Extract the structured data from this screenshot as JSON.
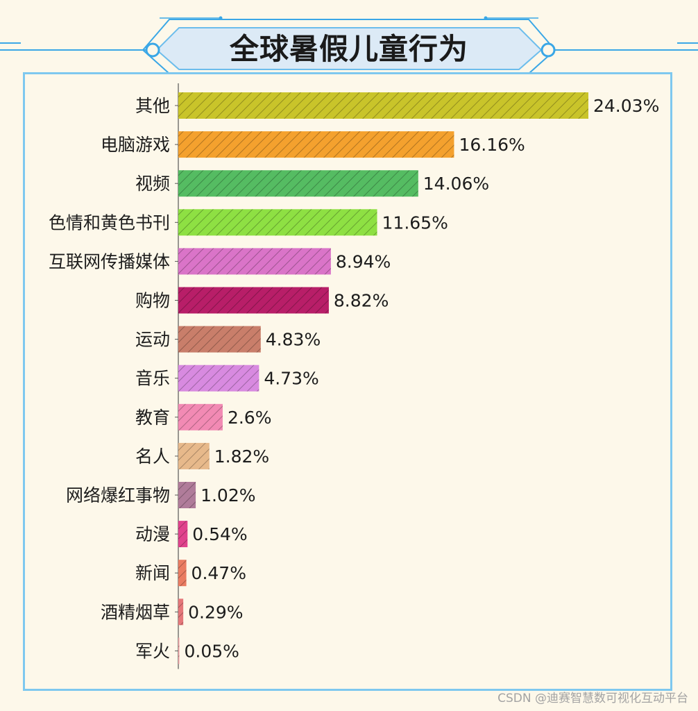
{
  "title": "全球暑假儿童行为",
  "watermark": "CSDN @迪赛智慧数可视化互动平台",
  "colors": {
    "background": "#fdf8ea",
    "frame": "#7ec8ef",
    "title_plate": "#dceaf6",
    "accent": "#3aa7e6"
  },
  "chart_data": {
    "type": "bar",
    "orientation": "horizontal",
    "title": "全球暑假儿童行为",
    "xlabel": "",
    "ylabel": "",
    "value_format": "percent",
    "pattern": "diagonal-hatch",
    "grid": false,
    "legend": "none",
    "xlim": [
      0,
      24.03
    ],
    "categories": [
      "其他",
      "电脑游戏",
      "视频",
      "色情和黄色书刊",
      "互联网传播媒体",
      "购物",
      "运动",
      "音乐",
      "教育",
      "名人",
      "网络爆红事物",
      "动漫",
      "新闻",
      "酒精烟草",
      "军火"
    ],
    "values": [
      24.03,
      16.16,
      14.06,
      11.65,
      8.94,
      8.82,
      4.83,
      4.73,
      2.6,
      1.82,
      1.02,
      0.54,
      0.47,
      0.29,
      0.05
    ],
    "labels": [
      "24.03%",
      "16.16%",
      "14.06%",
      "11.65%",
      "8.94%",
      "8.82%",
      "4.83%",
      "4.73%",
      "2.6%",
      "1.82%",
      "1.02%",
      "0.54%",
      "0.47%",
      "0.29%",
      "0.05%"
    ],
    "bar_colors": [
      "#c9c42a",
      "#f4a12e",
      "#55bc62",
      "#8ee043",
      "#da74c8",
      "#b81e68",
      "#c97e6a",
      "#d88ae0",
      "#f28ab4",
      "#e7b98b",
      "#b07c9a",
      "#e0428c",
      "#ea7c62",
      "#e5777a",
      "#f2a0a4"
    ]
  }
}
